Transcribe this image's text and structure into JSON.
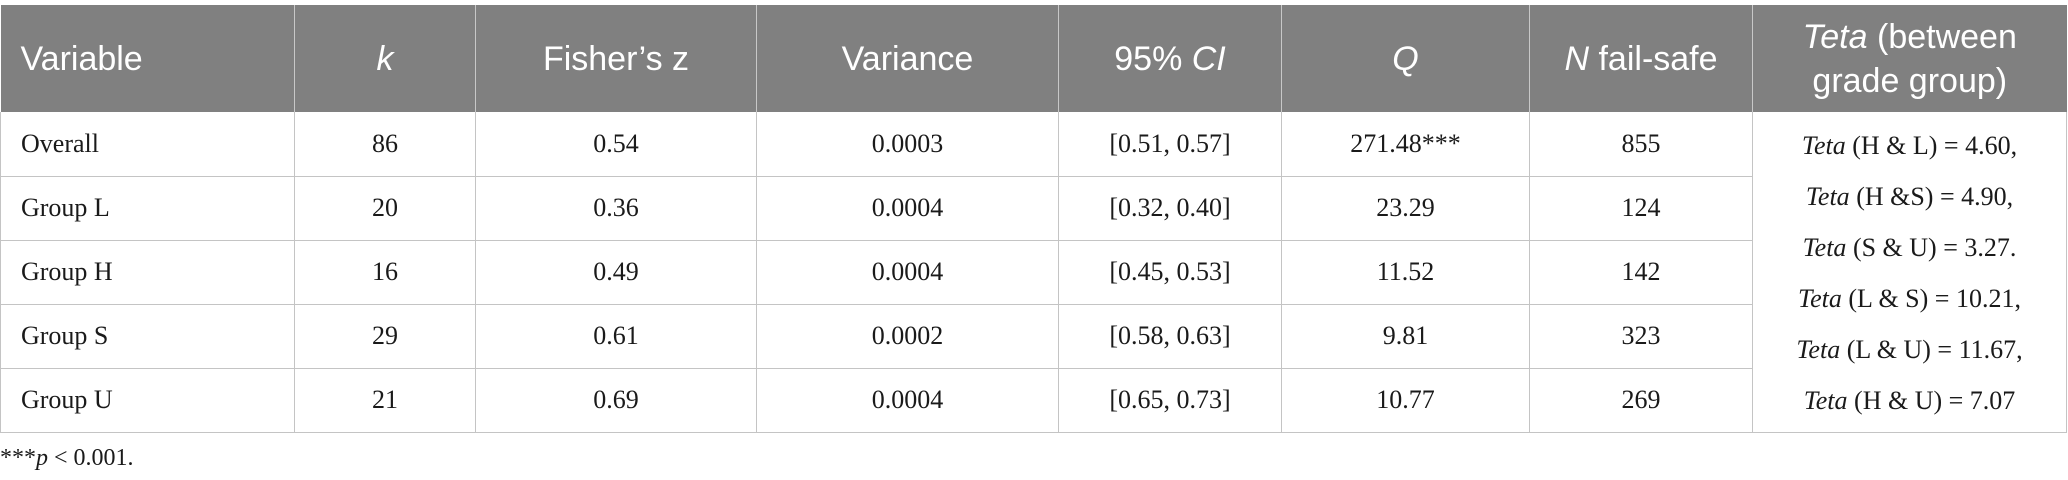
{
  "table": {
    "headers": [
      {
        "pre": "",
        "em": "",
        "post": "Variable"
      },
      {
        "pre": "",
        "em": "k",
        "post": ""
      },
      {
        "pre": "",
        "em": "",
        "post": "Fisher’s z"
      },
      {
        "pre": "",
        "em": "",
        "post": "Variance"
      },
      {
        "pre": "95% ",
        "em": "CI",
        "post": ""
      },
      {
        "pre": "",
        "em": "Q",
        "post": ""
      },
      {
        "pre": "",
        "em": "N",
        "post": " fail-safe"
      },
      {
        "pre": "",
        "em": "Teta",
        "post": " (between",
        "line2": "grade group)"
      }
    ],
    "rows": [
      {
        "variable": "Overall",
        "k": "86",
        "fisher_z": "0.54",
        "variance": "0.0003",
        "ci": "[0.51, 0.57]",
        "q": "271.48***",
        "fail_safe": "855"
      },
      {
        "variable": "Group L",
        "k": "20",
        "fisher_z": "0.36",
        "variance": "0.0004",
        "ci": "[0.32, 0.40]",
        "q": "23.29",
        "fail_safe": "124"
      },
      {
        "variable": "Group H",
        "k": "16",
        "fisher_z": "0.49",
        "variance": "0.0004",
        "ci": "[0.45, 0.53]",
        "q": "11.52",
        "fail_safe": "142"
      },
      {
        "variable": "Group S",
        "k": "29",
        "fisher_z": "0.61",
        "variance": "0.0002",
        "ci": "[0.58, 0.63]",
        "q": "9.81",
        "fail_safe": "323"
      },
      {
        "variable": "Group U",
        "k": "21",
        "fisher_z": "0.69",
        "variance": "0.0004",
        "ci": "[0.65, 0.73]",
        "q": "10.77",
        "fail_safe": "269"
      }
    ],
    "teta": [
      {
        "label": "Teta",
        "text": " (H & L) = 4.60,"
      },
      {
        "label": "Teta",
        "text": " (H &S) = 4.90,"
      },
      {
        "label": "Teta",
        "text": " (S & U) = 3.27."
      },
      {
        "label": "Teta",
        "text": " (L & S) = 10.21,"
      },
      {
        "label": "Teta",
        "text": " (L & U) = 11.67,"
      },
      {
        "label": "Teta",
        "text": " (H & U) = 7.07"
      }
    ]
  },
  "footnote": {
    "stars": "***",
    "p": "p",
    "rest": " < 0.001."
  }
}
